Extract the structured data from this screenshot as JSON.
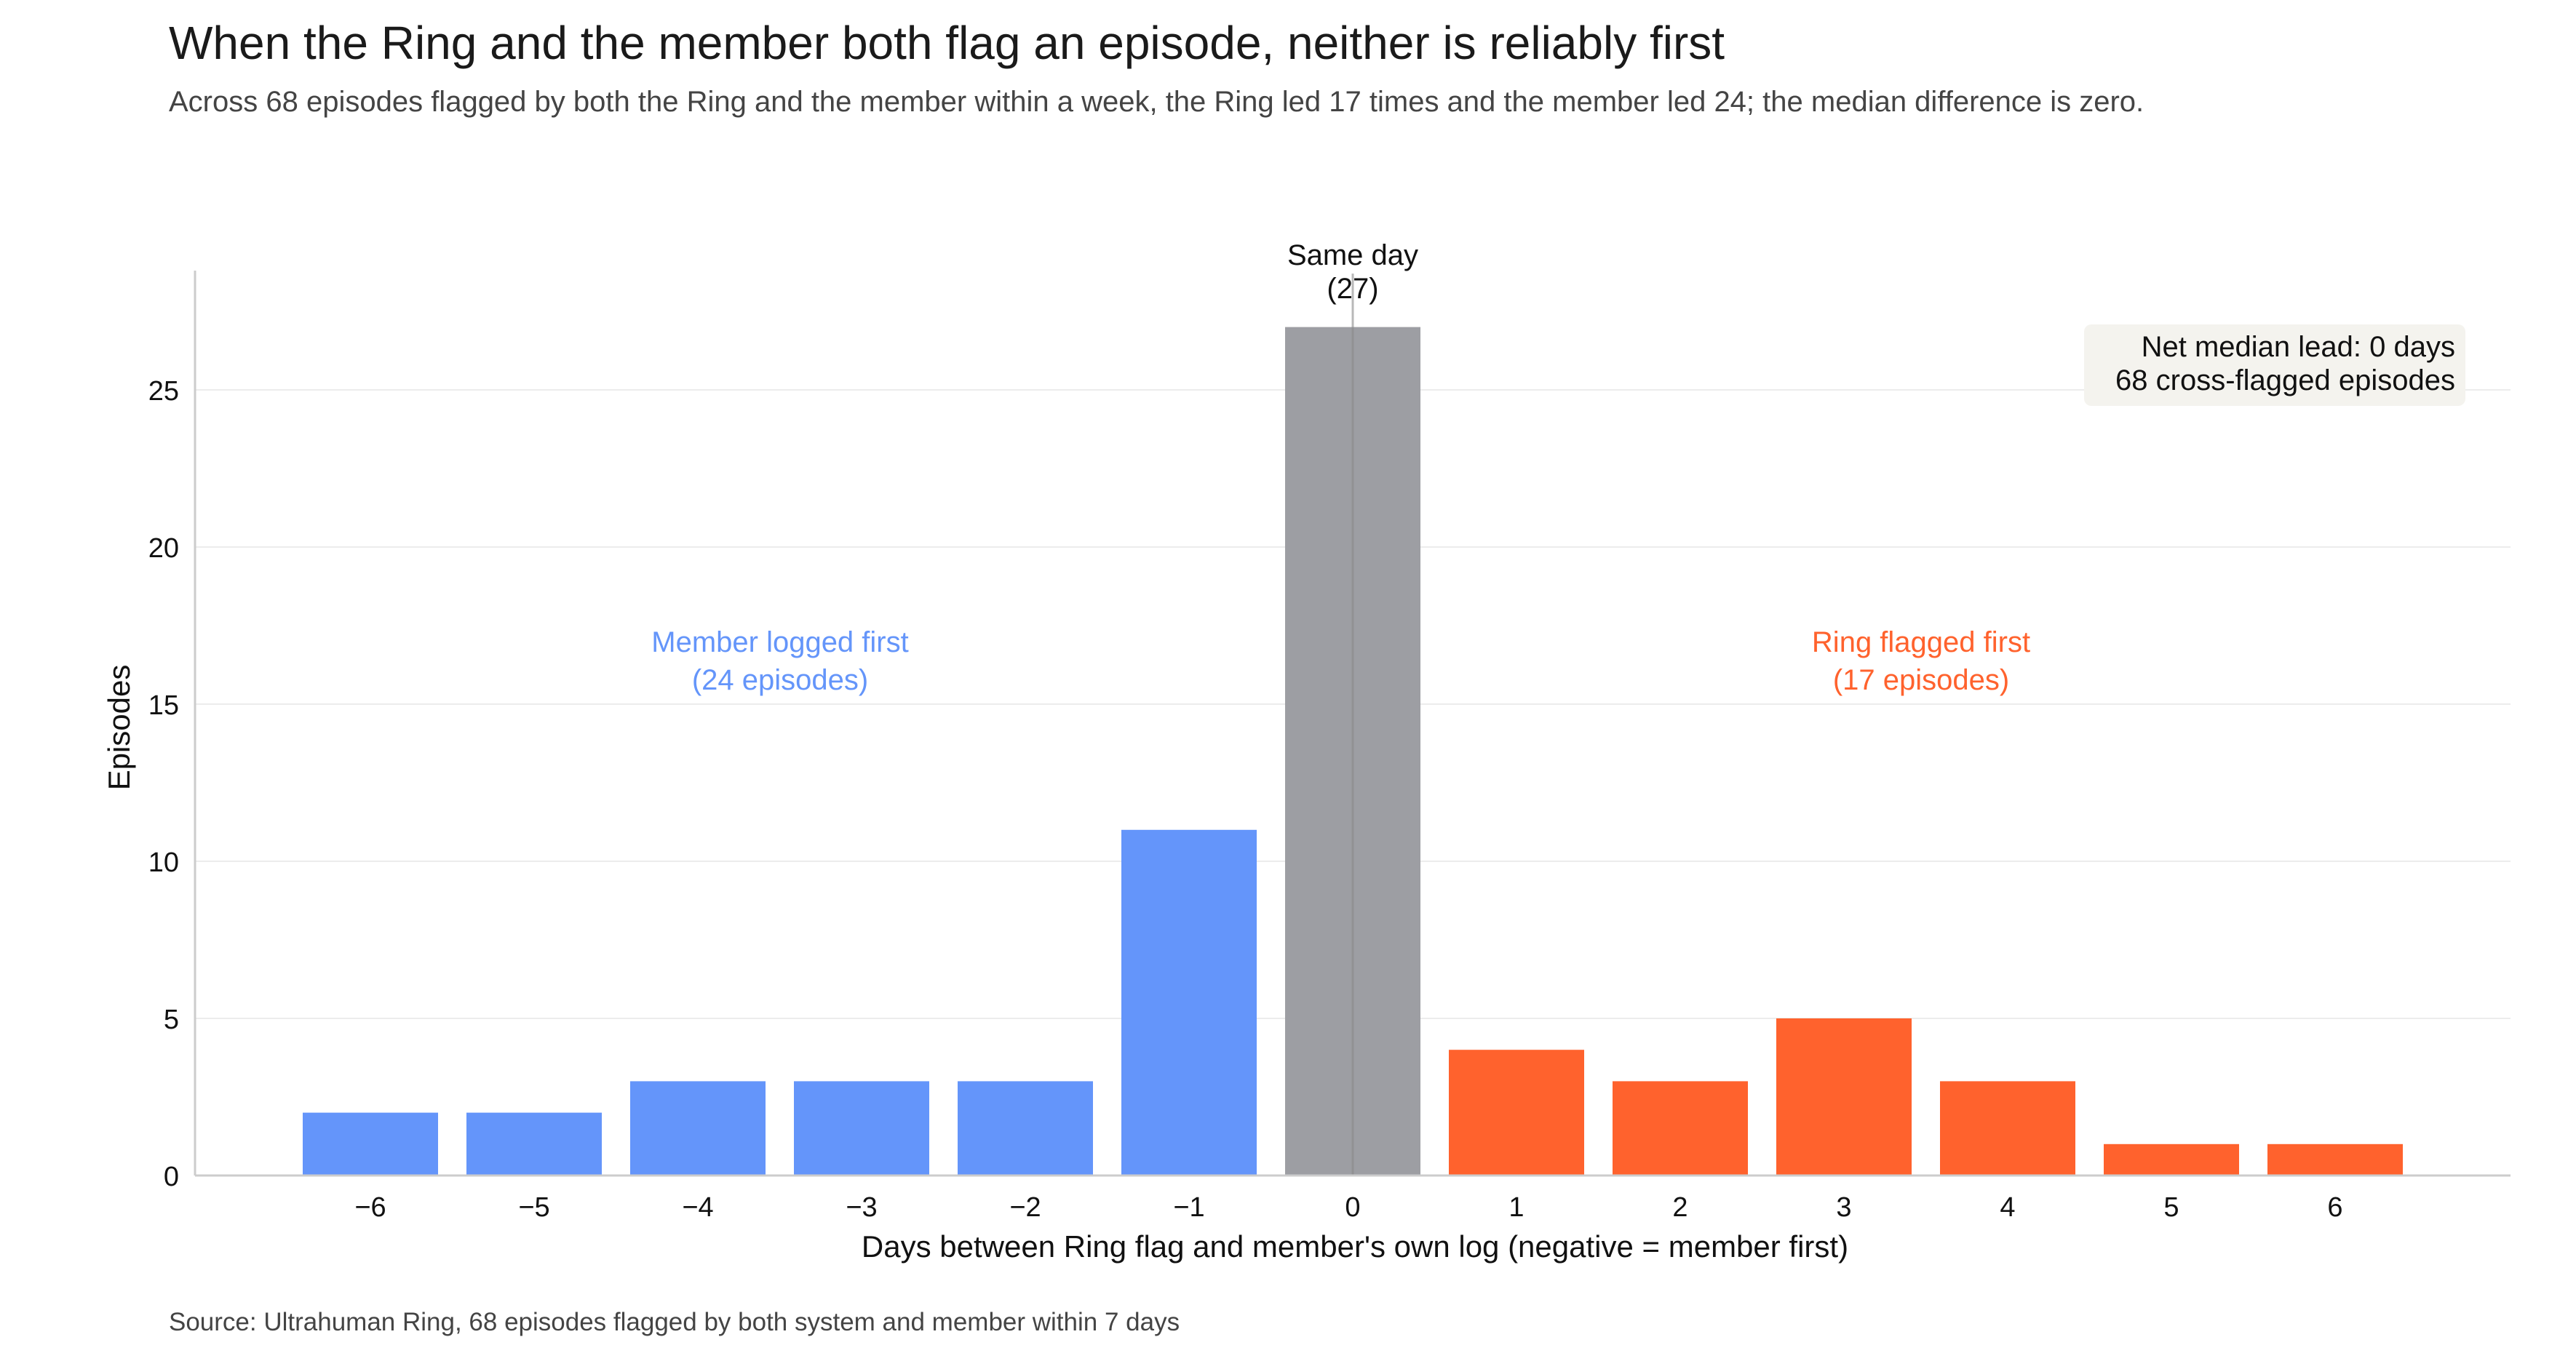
{
  "title": "When the Ring and the member both flag an episode, neither is reliably first",
  "subtitle": "Across 68 episodes flagged by both the Ring and the member within a week, the Ring led 17 times and the member led 24; the median difference is zero.",
  "source": "Source: Ultrahuman Ring, 68 episodes flagged by both system and member within 7 days",
  "colors": {
    "member_first": "#6495fa",
    "same_day": "#9d9ea3",
    "ring_first": "#ff622d",
    "grid": "#ececec",
    "axis": "#cccccc",
    "annotation_box": "#f4f3ee"
  },
  "chart_data": {
    "type": "bar",
    "categories": [
      "−6",
      "−5",
      "−4",
      "−3",
      "−2",
      "−1",
      "0",
      "1",
      "2",
      "3",
      "4",
      "5",
      "6"
    ],
    "x": [
      -6,
      -5,
      -4,
      -3,
      -2,
      -1,
      0,
      1,
      2,
      3,
      4,
      5,
      6
    ],
    "values": [
      2,
      2,
      3,
      3,
      3,
      11,
      27,
      4,
      3,
      5,
      3,
      1,
      1
    ],
    "xlabel": "Days between Ring flag and member's own log  (negative = member first)",
    "ylabel": "Episodes",
    "ylim": [
      0,
      28.7
    ],
    "yticks": [
      0,
      5,
      10,
      15,
      20,
      25
    ],
    "grid": "horizontal",
    "reference_line": 0,
    "annotations": {
      "same_day": [
        "Same day",
        "(27)"
      ],
      "member_first": [
        "Member logged first",
        "(24 episodes)"
      ],
      "ring_first": [
        "Ring flagged first",
        "(17 episodes)"
      ],
      "summary_box": [
        "Net median lead: 0 days",
        "68 cross-flagged episodes"
      ]
    }
  }
}
